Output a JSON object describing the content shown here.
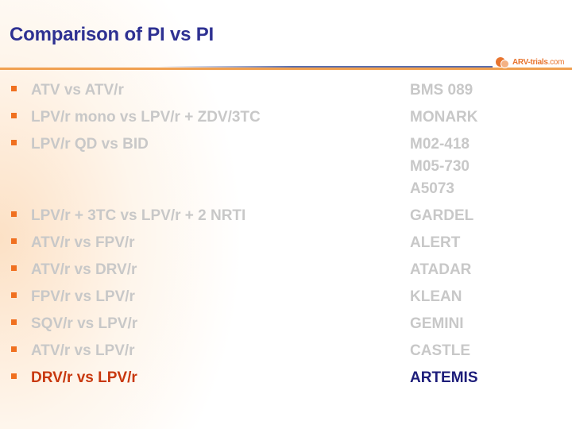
{
  "title": "Comparison of PI vs PI",
  "logo": {
    "text_main": "ARV-trials",
    "text_suffix": ".com"
  },
  "colors": {
    "title": "#2e3192",
    "bullet": "#f07020",
    "muted": "#c8c8c8",
    "highlight_label": "#c8380e",
    "highlight_trial": "#1d1d7a"
  },
  "rows": [
    {
      "label": "ATV vs ATV/r",
      "trials": [
        "BMS 089"
      ]
    },
    {
      "label": "LPV/r mono vs LPV/r + ZDV/3TC",
      "trials": [
        "MONARK"
      ]
    },
    {
      "label": "LPV/r QD vs BID",
      "trials": [
        "M02-418",
        "M05-730",
        "A5073"
      ]
    },
    {
      "label": "LPV/r + 3TC vs LPV/r + 2 NRTI",
      "trials": [
        "GARDEL"
      ]
    },
    {
      "label": "ATV/r vs FPV/r",
      "trials": [
        "ALERT"
      ]
    },
    {
      "label": "ATV/r vs DRV/r",
      "trials": [
        "ATADAR"
      ]
    },
    {
      "label": "FPV/r vs LPV/r",
      "trials": [
        "KLEAN"
      ]
    },
    {
      "label": "SQV/r vs LPV/r",
      "trials": [
        "GEMINI"
      ]
    },
    {
      "label": "ATV/r vs LPV/r",
      "trials": [
        "CASTLE"
      ]
    },
    {
      "label": "DRV/r vs LPV/r",
      "trials": [
        "ARTEMIS"
      ]
    }
  ]
}
